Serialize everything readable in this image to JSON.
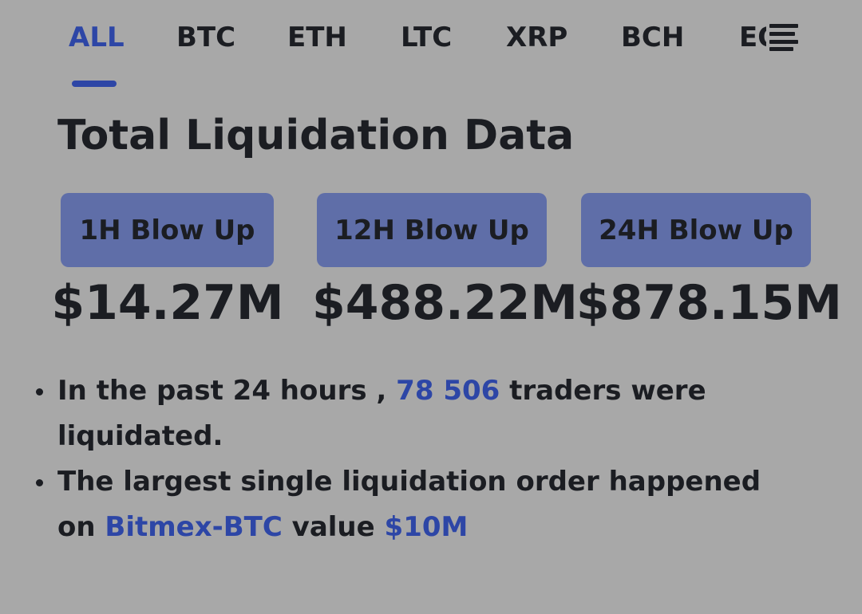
{
  "tabs": [
    {
      "label": "ALL",
      "active": true
    },
    {
      "label": "BTC",
      "active": false
    },
    {
      "label": "ETH",
      "active": false
    },
    {
      "label": "LTC",
      "active": false
    },
    {
      "label": "XRP",
      "active": false
    },
    {
      "label": "BCH",
      "active": false
    },
    {
      "label": "EOS",
      "active": false
    }
  ],
  "menu_icon": "hamburger-menu-icon",
  "title": "Total Liquidation Data",
  "blowups": [
    {
      "label": "1H Blow Up",
      "amount": "$14.27M"
    },
    {
      "label": "12H Blow Up",
      "amount": "$488.22M"
    },
    {
      "label": "24H Blow Up",
      "amount": "$878.15M"
    }
  ],
  "notes": {
    "traders": {
      "prefix": "In the past 24 hours , ",
      "count": "78 506",
      "suffix": " traders were liquidated."
    },
    "largest": {
      "prefix": "The largest single liquidation order happened on ",
      "exchange": "Bitmex-BTC",
      "middle": " value ",
      "value": "$10M"
    }
  },
  "colors": {
    "accent": "#2d46a6",
    "pill": "#5f6ea8",
    "background": "#a8a8a8",
    "text": "#1b1d22"
  }
}
